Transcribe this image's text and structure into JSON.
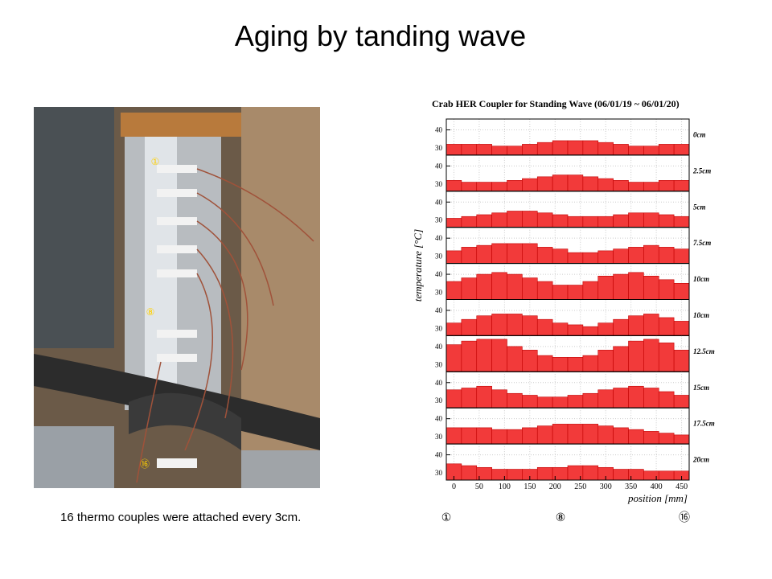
{
  "title": "Aging by tanding wave",
  "caption": "16 thermo couples were attached every 3cm.",
  "photo_labels": [
    "①",
    "⑧",
    "⑯"
  ],
  "markers": [
    "①",
    "⑧",
    "⑯"
  ],
  "chart_data": {
    "type": "histogram",
    "title": "Crab HER Coupler for Standing Wave (06/01/19 ~ 06/01/20)",
    "xlabel": "position [mm]",
    "ylabel": "temperature [°C]",
    "bins": [
      -15,
      15,
      45,
      75,
      105,
      135,
      165,
      195,
      225,
      255,
      285,
      315,
      345,
      375,
      405,
      435,
      465
    ],
    "xlim": [
      -15,
      465
    ],
    "xticks": [
      0,
      50,
      100,
      150,
      200,
      250,
      300,
      350,
      400,
      450
    ],
    "ylim": [
      26,
      46
    ],
    "yticks": [
      30,
      40
    ],
    "grid": true,
    "color": "#f23a3a",
    "series": [
      {
        "name": "0cm",
        "values": [
          32,
          32,
          32,
          31,
          31,
          32,
          33,
          34,
          34,
          34,
          33,
          32,
          31,
          31,
          32,
          32
        ]
      },
      {
        "name": "2.5cm",
        "values": [
          32,
          31,
          31,
          31,
          32,
          33,
          34,
          35,
          35,
          34,
          33,
          32,
          31,
          31,
          32,
          32
        ]
      },
      {
        "name": "5cm",
        "values": [
          31,
          32,
          33,
          34,
          35,
          35,
          34,
          33,
          32,
          32,
          32,
          33,
          34,
          34,
          33,
          32
        ]
      },
      {
        "name": "7.5cm",
        "values": [
          33,
          35,
          36,
          37,
          37,
          37,
          35,
          34,
          32,
          32,
          33,
          34,
          35,
          36,
          35,
          34
        ]
      },
      {
        "name": "10cm",
        "values": [
          36,
          38,
          40,
          41,
          40,
          38,
          36,
          34,
          34,
          36,
          39,
          40,
          41,
          39,
          37,
          35
        ]
      },
      {
        "name": "10cm",
        "values": [
          33,
          35,
          37,
          38,
          38,
          37,
          35,
          33,
          32,
          31,
          33,
          35,
          37,
          38,
          36,
          34
        ]
      },
      {
        "name": "12.5cm",
        "values": [
          41,
          43,
          44,
          44,
          40,
          38,
          35,
          34,
          34,
          35,
          38,
          40,
          43,
          44,
          42,
          38
        ]
      },
      {
        "name": "15cm",
        "values": [
          36,
          37,
          38,
          36,
          34,
          33,
          32,
          32,
          33,
          34,
          36,
          37,
          38,
          37,
          35,
          33
        ]
      },
      {
        "name": "17.5cm",
        "values": [
          35,
          35,
          35,
          34,
          34,
          35,
          36,
          37,
          37,
          37,
          36,
          35,
          34,
          33,
          32,
          31
        ]
      },
      {
        "name": "20cm",
        "values": [
          35,
          34,
          33,
          32,
          32,
          32,
          33,
          33,
          34,
          34,
          33,
          32,
          32,
          31,
          31,
          31
        ]
      }
    ]
  }
}
